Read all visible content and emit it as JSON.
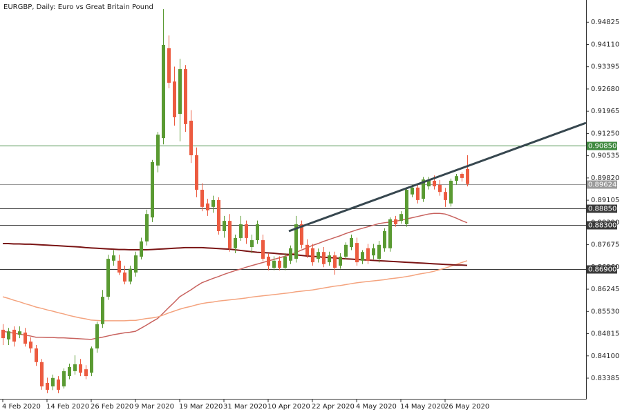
{
  "chart_data": {
    "type": "candlestick",
    "title": "EURGBP, Daily:  Euro vs Great Britain Pound",
    "categories": [
      "4 Feb 2020",
      null,
      null,
      null,
      null,
      null,
      null,
      null,
      "14 Feb 2020",
      null,
      null,
      null,
      null,
      null,
      null,
      null,
      "26 Feb 2020",
      null,
      null,
      null,
      null,
      null,
      null,
      null,
      "9 Mar 2020",
      null,
      null,
      null,
      null,
      null,
      null,
      null,
      "19 Mar 2020",
      null,
      null,
      null,
      null,
      null,
      null,
      null,
      "31 Mar 2020",
      null,
      null,
      null,
      null,
      null,
      null,
      null,
      "10 Apr 2020",
      null,
      null,
      null,
      null,
      null,
      null,
      null,
      "22 Apr 2020",
      null,
      null,
      null,
      null,
      null,
      null,
      null,
      "4 May 2020",
      null,
      null,
      null,
      null,
      null,
      null,
      null,
      "14 May 2020",
      null,
      null,
      null,
      null,
      null,
      null,
      null,
      "26 May 2020",
      null,
      null,
      null,
      null
    ],
    "open": [
      0.8494,
      0.8463,
      0.8494,
      0.8478,
      0.8485,
      0.8456,
      0.8434,
      0.839,
      0.8323,
      0.8312,
      0.8334,
      0.8312,
      0.8345,
      0.8361,
      0.8383,
      0.8367,
      0.8356,
      0.8434,
      0.8512,
      0.86,
      0.8716,
      0.8716,
      0.8678,
      0.8649,
      0.8678,
      0.8729,
      0.8778,
      0.8855,
      0.9022,
      0.911,
      0.9399,
      0.9292,
      0.9188,
      0.9332,
      0.9166,
      0.9055,
      0.8944,
      0.89,
      0.8889,
      0.8911,
      0.8811,
      0.8844,
      0.8756,
      0.8789,
      0.8833,
      0.876,
      0.8782,
      0.8782,
      0.8729,
      0.8693,
      0.8716,
      0.8693,
      0.8716,
      0.8722,
      0.8833,
      0.8767,
      0.8756,
      0.8722,
      0.8744,
      0.8711,
      0.8733,
      0.87,
      0.8729,
      0.876,
      0.8773,
      0.8716,
      0.8756,
      0.8733,
      0.8722,
      0.8756,
      0.8756,
      0.8849,
      0.8844,
      0.8833,
      0.8929,
      0.8951,
      0.8915,
      0.8955,
      0.8973,
      0.896,
      0.8937,
      0.89,
      0.8973,
      0.8995,
      0.9011
    ],
    "high": [
      0.8512,
      0.85,
      0.8505,
      0.8505,
      0.85,
      0.847,
      0.8445,
      0.84,
      0.834,
      0.835,
      0.8345,
      0.837,
      0.8385,
      0.8412,
      0.84,
      0.838,
      0.844,
      0.852,
      0.8622,
      0.8735,
      0.875,
      0.8735,
      0.87,
      0.87,
      0.8745,
      0.879,
      0.888,
      0.904,
      0.913,
      0.9525,
      0.944,
      0.934,
      0.9365,
      0.9345,
      0.92,
      0.908,
      0.8965,
      0.8915,
      0.8925,
      0.892,
      0.886,
      0.8866,
      0.88,
      0.886,
      0.8845,
      0.88,
      0.8845,
      0.88,
      0.874,
      0.873,
      0.873,
      0.874,
      0.8765,
      0.886,
      0.8845,
      0.8785,
      0.877,
      0.8755,
      0.876,
      0.8745,
      0.8745,
      0.874,
      0.8775,
      0.88,
      0.879,
      0.875,
      0.877,
      0.877,
      0.878,
      0.882,
      0.8855,
      0.886,
      0.8875,
      0.895,
      0.896,
      0.8965,
      0.8985,
      0.8985,
      0.899,
      0.8975,
      0.895,
      0.898,
      0.8995,
      0.9,
      0.9055
    ],
    "low": [
      0.8445,
      0.8445,
      0.844,
      0.8467,
      0.844,
      0.842,
      0.8378,
      0.8301,
      0.829,
      0.83,
      0.829,
      0.8305,
      0.8335,
      0.835,
      0.8345,
      0.8335,
      0.8345,
      0.842,
      0.85,
      0.859,
      0.87,
      0.867,
      0.864,
      0.864,
      0.8665,
      0.872,
      0.8765,
      0.884,
      0.9,
      0.909,
      0.927,
      0.915,
      0.91,
      0.913,
      0.903,
      0.892,
      0.8875,
      0.886,
      0.887,
      0.88,
      0.879,
      0.8745,
      0.874,
      0.878,
      0.877,
      0.874,
      0.877,
      0.8715,
      0.8685,
      0.8685,
      0.8685,
      0.8685,
      0.8705,
      0.871,
      0.8755,
      0.8725,
      0.87,
      0.871,
      0.8695,
      0.87,
      0.8671,
      0.869,
      0.872,
      0.875,
      0.87,
      0.8705,
      0.8705,
      0.872,
      0.871,
      0.8745,
      0.8745,
      0.8825,
      0.8835,
      0.8825,
      0.892,
      0.89,
      0.8905,
      0.8945,
      0.8945,
      0.8925,
      0.8889,
      0.889,
      0.896,
      0.897,
      0.8955
    ],
    "close": [
      0.8467,
      0.8489,
      0.8456,
      0.8489,
      0.8449,
      0.8434,
      0.839,
      0.8312,
      0.8301,
      0.8339,
      0.8301,
      0.8361,
      0.8374,
      0.8383,
      0.8356,
      0.8345,
      0.8434,
      0.8512,
      0.86,
      0.8722,
      0.8733,
      0.8678,
      0.8649,
      0.869,
      0.8733,
      0.8778,
      0.8866,
      0.9033,
      0.9121,
      0.941,
      0.9288,
      0.9177,
      0.9332,
      0.9155,
      0.9055,
      0.8944,
      0.8889,
      0.8878,
      0.8911,
      0.8811,
      0.8844,
      0.8756,
      0.8789,
      0.8833,
      0.8789,
      0.8782,
      0.8833,
      0.8722,
      0.87,
      0.8716,
      0.8693,
      0.8729,
      0.8756,
      0.8833,
      0.8767,
      0.8733,
      0.8711,
      0.8744,
      0.8705,
      0.8733,
      0.8693,
      0.8729,
      0.8767,
      0.8789,
      0.8711,
      0.8744,
      0.8716,
      0.8756,
      0.8767,
      0.8811,
      0.8849,
      0.8833,
      0.8866,
      0.8944,
      0.8951,
      0.8911,
      0.8977,
      0.8973,
      0.8955,
      0.8937,
      0.8911,
      0.8973,
      0.8988,
      0.8982,
      0.89624
    ],
    "up_color": "#5a9a32",
    "down_color": "#ec5b40",
    "series": [
      {
        "color": "#c8625e",
        "values": [
          0.8489,
          0.8486,
          0.8483,
          0.848,
          0.8477,
          0.8474,
          0.847,
          0.847,
          0.8469,
          0.8469,
          0.8468,
          0.8468,
          0.8467,
          0.8466,
          0.8465,
          0.8464,
          0.8463,
          0.8467,
          0.847,
          0.8474,
          0.8478,
          0.8481,
          0.8484,
          0.8486,
          0.8489,
          0.8499,
          0.8509,
          0.852,
          0.853,
          0.8547,
          0.8565,
          0.8582,
          0.86,
          0.8611,
          0.8622,
          0.8634,
          0.8645,
          0.8652,
          0.8659,
          0.8665,
          0.8672,
          0.8678,
          0.8684,
          0.8689,
          0.8695,
          0.87,
          0.8705,
          0.871,
          0.8715,
          0.872,
          0.8725,
          0.873,
          0.8735,
          0.8742,
          0.875,
          0.8757,
          0.8765,
          0.8771,
          0.8778,
          0.8784,
          0.879,
          0.8796,
          0.8803,
          0.8809,
          0.8815,
          0.882,
          0.8825,
          0.883,
          0.8835,
          0.8838,
          0.884,
          0.8843,
          0.8846,
          0.885,
          0.8854,
          0.8858,
          0.8862,
          0.8866,
          0.8868,
          0.8868,
          0.8866,
          0.886,
          0.8853,
          0.8845,
          0.8838
        ]
      },
      {
        "color": "#f4a37e",
        "values": [
          0.86,
          0.8595,
          0.8589,
          0.8584,
          0.8578,
          0.8573,
          0.8567,
          0.8563,
          0.8558,
          0.8554,
          0.8549,
          0.8545,
          0.854,
          0.8536,
          0.8532,
          0.8529,
          0.8525,
          0.8524,
          0.8523,
          0.8523,
          0.8523,
          0.8523,
          0.8523,
          0.8524,
          0.8524,
          0.8527,
          0.853,
          0.8532,
          0.8535,
          0.8541,
          0.8548,
          0.8554,
          0.856,
          0.8565,
          0.8569,
          0.8574,
          0.8578,
          0.8581,
          0.8583,
          0.8586,
          0.8588,
          0.859,
          0.8592,
          0.8594,
          0.8596,
          0.8599,
          0.8601,
          0.8603,
          0.8605,
          0.8607,
          0.8609,
          0.8611,
          0.8613,
          0.8616,
          0.8618,
          0.862,
          0.8622,
          0.8625,
          0.8628,
          0.8631,
          0.8634,
          0.8636,
          0.8639,
          0.8642,
          0.8645,
          0.8647,
          0.8649,
          0.8651,
          0.8653,
          0.8655,
          0.8658,
          0.866,
          0.8662,
          0.8665,
          0.8668,
          0.8672,
          0.8675,
          0.8678,
          0.8682,
          0.8687,
          0.8692,
          0.8698,
          0.8704,
          0.871,
          0.8716
        ]
      },
      {
        "color": "#7a1414",
        "values": [
          0.8771,
          0.8771,
          0.877,
          0.877,
          0.8769,
          0.8769,
          0.8768,
          0.8767,
          0.8766,
          0.8765,
          0.8764,
          0.8763,
          0.8762,
          0.8761,
          0.876,
          0.8758,
          0.8757,
          0.8756,
          0.8755,
          0.8754,
          0.8753,
          0.8752,
          0.8752,
          0.8751,
          0.8751,
          0.8751,
          0.8751,
          0.8752,
          0.8753,
          0.8754,
          0.8755,
          0.8756,
          0.8757,
          0.8758,
          0.8758,
          0.8758,
          0.8758,
          0.8757,
          0.8756,
          0.8755,
          0.8754,
          0.8753,
          0.8751,
          0.8749,
          0.8747,
          0.8745,
          0.8743,
          0.8742,
          0.8741,
          0.874,
          0.8738,
          0.8737,
          0.8736,
          0.8735,
          0.8733,
          0.8731,
          0.873,
          0.8729,
          0.8727,
          0.8726,
          0.8725,
          0.8723,
          0.8722,
          0.8721,
          0.872,
          0.8719,
          0.8718,
          0.8717,
          0.8716,
          0.8715,
          0.8714,
          0.8713,
          0.8712,
          0.8711,
          0.871,
          0.8709,
          0.8708,
          0.8707,
          0.8706,
          0.8705,
          0.8704,
          0.8703,
          0.8702,
          0.8702,
          0.8701
        ]
      }
    ],
    "trendline": {
      "x": [
        51.75,
        105.5
      ],
      "values": [
        0.8811,
        0.9159
      ],
      "color": "#37474f"
    },
    "levels": [
      {
        "value": 0.9085,
        "label": "0.90850",
        "color": "#3f8a3f"
      },
      {
        "value": 0.89624,
        "label": "0.89624",
        "color": "#9a9a9a"
      },
      {
        "value": 0.8885,
        "label": "0.88850",
        "color": "#3a3a3a"
      },
      {
        "value": 0.883,
        "label": "0.88300",
        "color": "#3a3a3a"
      },
      {
        "value": 0.869,
        "label": "0.86900",
        "color": "#3a3a3a"
      }
    ],
    "xlim": [
      -0.5,
      105.5
    ],
    "ylim": [
      0.8272,
      0.9554
    ],
    "yticks": [
      {
        "value": 0.94825,
        "label": "0.94825"
      },
      {
        "value": 0.9411,
        "label": "0.94110"
      },
      {
        "value": 0.93395,
        "label": "0.93395"
      },
      {
        "value": 0.9268,
        "label": "0.92680"
      },
      {
        "value": 0.91965,
        "label": "0.91965"
      },
      {
        "value": 0.9125,
        "label": "0.91250"
      },
      {
        "value": 0.90535,
        "label": "0.90535"
      },
      {
        "value": 0.8982,
        "label": "0.89820"
      },
      {
        "value": 0.89105,
        "label": "0.89105"
      },
      {
        "value": 0.8839,
        "label": "0.88390"
      },
      {
        "value": 0.87675,
        "label": "0.87675"
      },
      {
        "value": 0.8696,
        "label": "0.86960"
      },
      {
        "value": 0.86245,
        "label": "0.86245"
      },
      {
        "value": 0.8553,
        "label": "0.85530"
      },
      {
        "value": 0.84815,
        "label": "0.84815"
      },
      {
        "value": 0.841,
        "label": "0.84100"
      },
      {
        "value": 0.83385,
        "label": "0.83385"
      }
    ]
  }
}
